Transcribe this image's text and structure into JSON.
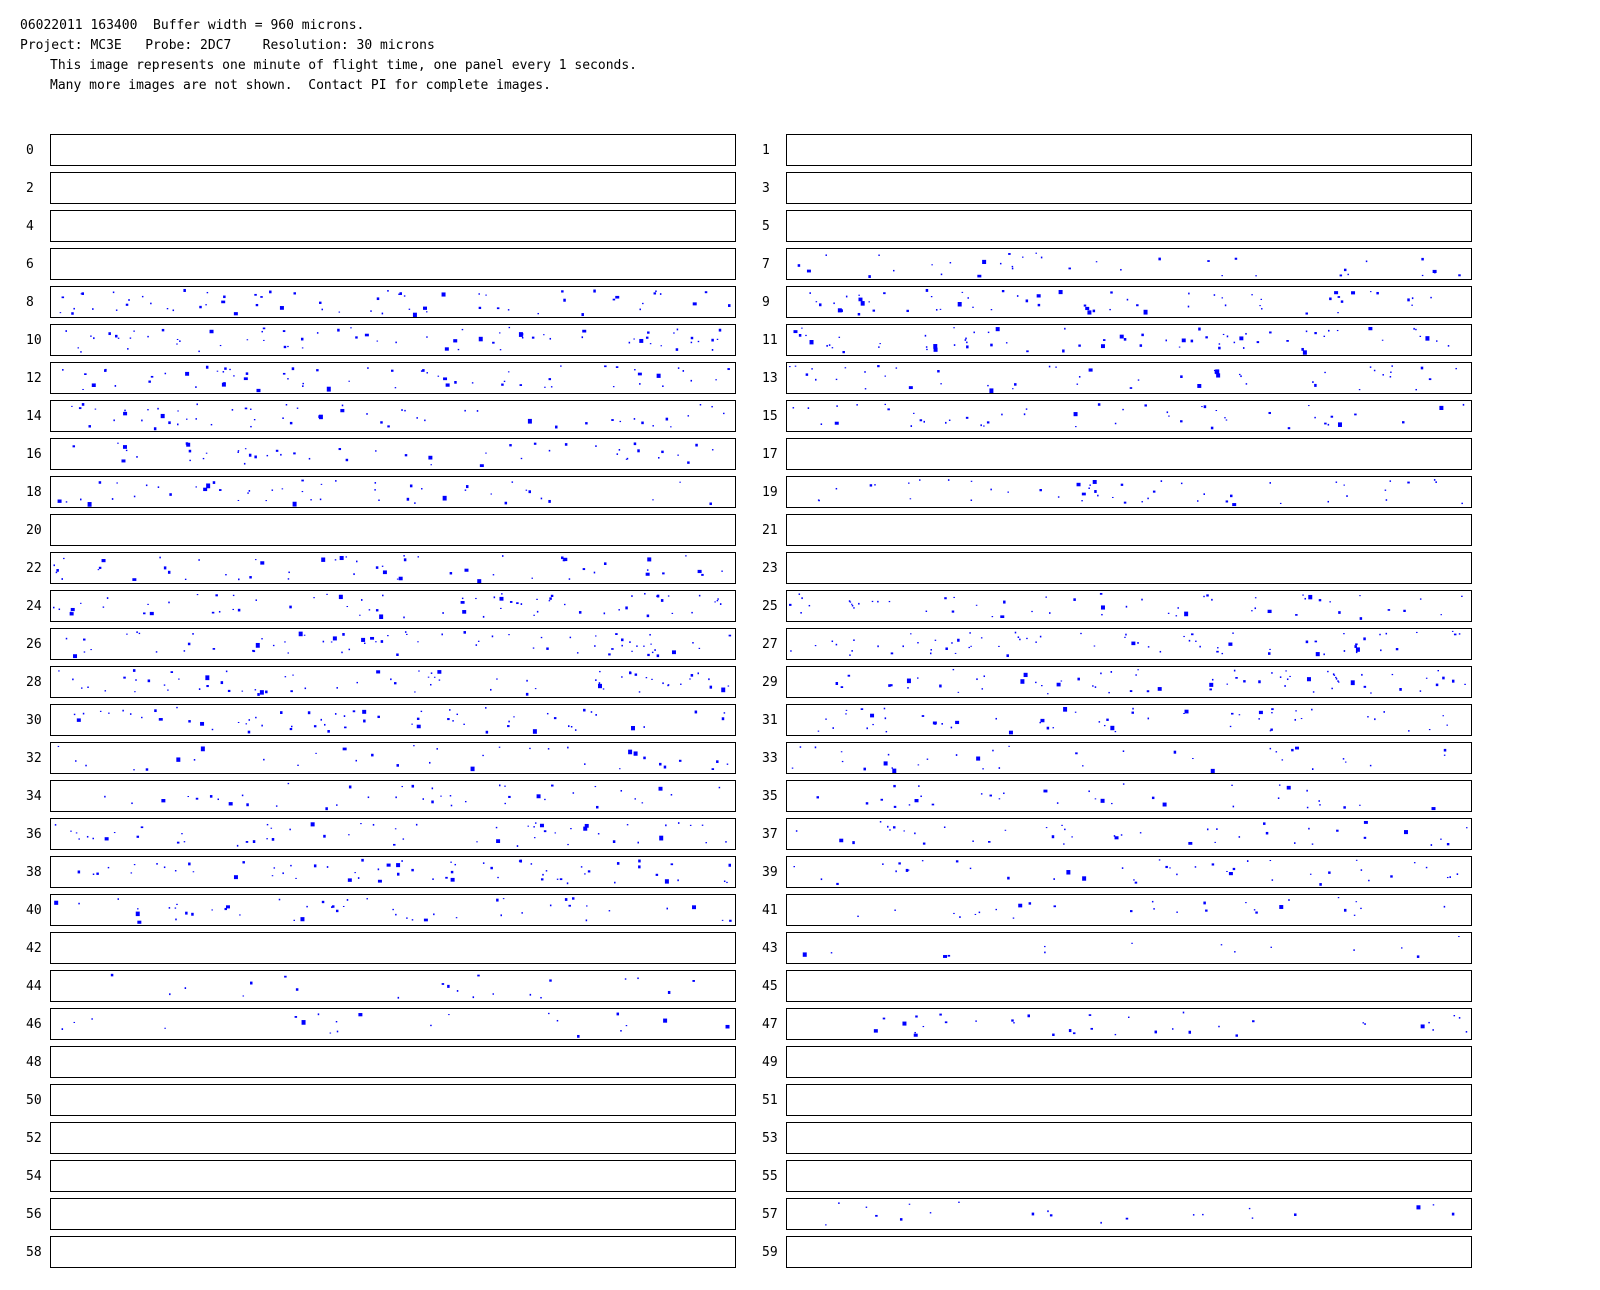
{
  "header": {
    "line1": "06022011 163400  Buffer width = 960 microns.",
    "line2": "Project: MC3E   Probe: 2DC7    Resolution: 30 microns",
    "line3": "This image represents one minute of flight time, one panel every 1 seconds.",
    "line4": "Many more images are not shown.  Contact PI for complete images."
  },
  "particle_color": "#0000ff",
  "panels": [
    {
      "label": "0",
      "density": 0
    },
    {
      "label": "1",
      "density": 0
    },
    {
      "label": "2",
      "density": 0
    },
    {
      "label": "3",
      "density": 0
    },
    {
      "label": "4",
      "density": 0
    },
    {
      "label": "5",
      "density": 0
    },
    {
      "label": "6",
      "density": 0
    },
    {
      "label": "7",
      "density": 0.5
    },
    {
      "label": "8",
      "density": 0.9
    },
    {
      "label": "9",
      "density": 0.9
    },
    {
      "label": "10",
      "density": 1
    },
    {
      "label": "11",
      "density": 1
    },
    {
      "label": "12",
      "density": 0.9
    },
    {
      "label": "13",
      "density": 0.7
    },
    {
      "label": "14",
      "density": 0.8
    },
    {
      "label": "15",
      "density": 0.7
    },
    {
      "label": "16",
      "density": 0.7
    },
    {
      "label": "17",
      "density": 0
    },
    {
      "label": "18",
      "density": 0.7
    },
    {
      "label": "19",
      "density": 0.7
    },
    {
      "label": "20",
      "density": 0
    },
    {
      "label": "21",
      "density": 0
    },
    {
      "label": "22",
      "density": 0.8
    },
    {
      "label": "23",
      "density": 0
    },
    {
      "label": "24",
      "density": 1
    },
    {
      "label": "25",
      "density": 0.8
    },
    {
      "label": "26",
      "density": 1
    },
    {
      "label": "27",
      "density": 1
    },
    {
      "label": "28",
      "density": 1
    },
    {
      "label": "29",
      "density": 1
    },
    {
      "label": "30",
      "density": 0.9
    },
    {
      "label": "31",
      "density": 0.8
    },
    {
      "label": "32",
      "density": 0.5
    },
    {
      "label": "33",
      "density": 0.5
    },
    {
      "label": "34",
      "density": 0.6
    },
    {
      "label": "35",
      "density": 0.5
    },
    {
      "label": "36",
      "density": 0.8
    },
    {
      "label": "37",
      "density": 0.6
    },
    {
      "label": "38",
      "density": 0.9
    },
    {
      "label": "39",
      "density": 0.6
    },
    {
      "label": "40",
      "density": 0.7
    },
    {
      "label": "41",
      "density": 0.4
    },
    {
      "label": "42",
      "density": 0
    },
    {
      "label": "43",
      "density": 0.2
    },
    {
      "label": "44",
      "density": 0.3
    },
    {
      "label": "45",
      "density": 0
    },
    {
      "label": "46",
      "density": 0.3
    },
    {
      "label": "47",
      "density": 0.5
    },
    {
      "label": "48",
      "density": 0
    },
    {
      "label": "49",
      "density": 0
    },
    {
      "label": "50",
      "density": 0
    },
    {
      "label": "51",
      "density": 0
    },
    {
      "label": "52",
      "density": 0
    },
    {
      "label": "53",
      "density": 0
    },
    {
      "label": "54",
      "density": 0
    },
    {
      "label": "55",
      "density": 0
    },
    {
      "label": "56",
      "density": 0
    },
    {
      "label": "57",
      "density": 0.3
    },
    {
      "label": "58",
      "density": 0
    },
    {
      "label": "59",
      "density": 0
    }
  ]
}
